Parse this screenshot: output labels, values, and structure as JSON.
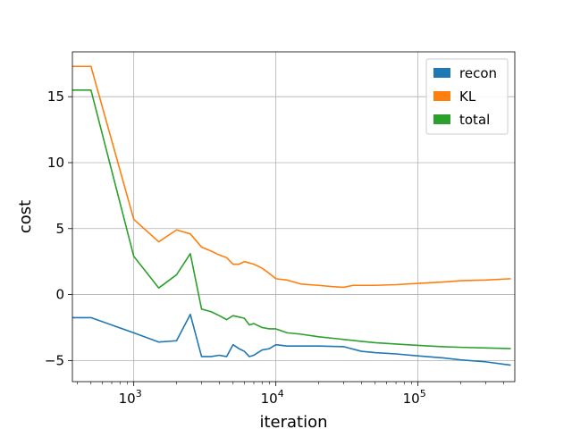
{
  "chart_data": {
    "type": "line",
    "xscale": "log",
    "xlabel": "iteration",
    "ylabel": "cost",
    "xlim": [
      370,
      480000
    ],
    "ylim": [
      -6.6,
      18.4
    ],
    "xticks": [
      {
        "value": 1000,
        "base": "10",
        "exp": "3"
      },
      {
        "value": 10000,
        "base": "10",
        "exp": "4"
      },
      {
        "value": 100000,
        "base": "10",
        "exp": "5"
      }
    ],
    "yticks": [
      -5,
      0,
      5,
      10,
      15
    ],
    "ytick_labels": [
      "−5",
      "0",
      "5",
      "10",
      "15"
    ],
    "grid": true,
    "legend_position": "top-right",
    "series": [
      {
        "name": "recon",
        "color": "#1f77b4",
        "points": [
          [
            370,
            -1.75
          ],
          [
            500,
            -1.75
          ],
          [
            1000,
            -2.9
          ],
          [
            1500,
            -3.6
          ],
          [
            2000,
            -3.5
          ],
          [
            2500,
            -1.5
          ],
          [
            3000,
            -4.7
          ],
          [
            3500,
            -4.7
          ],
          [
            4000,
            -4.6
          ],
          [
            4500,
            -4.7
          ],
          [
            5000,
            -3.8
          ],
          [
            5500,
            -4.1
          ],
          [
            6000,
            -4.3
          ],
          [
            6500,
            -4.7
          ],
          [
            7000,
            -4.6
          ],
          [
            8000,
            -4.2
          ],
          [
            9000,
            -4.1
          ],
          [
            10000,
            -3.8
          ],
          [
            12000,
            -3.9
          ],
          [
            15000,
            -3.9
          ],
          [
            20000,
            -3.9
          ],
          [
            30000,
            -3.95
          ],
          [
            40000,
            -4.3
          ],
          [
            50000,
            -4.4
          ],
          [
            70000,
            -4.5
          ],
          [
            100000,
            -4.65
          ],
          [
            150000,
            -4.8
          ],
          [
            200000,
            -4.95
          ],
          [
            300000,
            -5.1
          ],
          [
            450000,
            -5.35
          ]
        ]
      },
      {
        "name": "KL",
        "color": "#ff7f0e",
        "points": [
          [
            370,
            17.3
          ],
          [
            500,
            17.3
          ],
          [
            1000,
            5.7
          ],
          [
            1500,
            4.0
          ],
          [
            2000,
            4.9
          ],
          [
            2500,
            4.6
          ],
          [
            3000,
            3.6
          ],
          [
            3500,
            3.3
          ],
          [
            4000,
            3.0
          ],
          [
            4500,
            2.8
          ],
          [
            5000,
            2.3
          ],
          [
            5500,
            2.3
          ],
          [
            6000,
            2.5
          ],
          [
            7000,
            2.3
          ],
          [
            8000,
            2.0
          ],
          [
            9000,
            1.6
          ],
          [
            10000,
            1.2
          ],
          [
            12000,
            1.1
          ],
          [
            15000,
            0.8
          ],
          [
            20000,
            0.7
          ],
          [
            25000,
            0.6
          ],
          [
            30000,
            0.55
          ],
          [
            35000,
            0.7
          ],
          [
            50000,
            0.7
          ],
          [
            70000,
            0.75
          ],
          [
            100000,
            0.85
          ],
          [
            150000,
            0.95
          ],
          [
            200000,
            1.05
          ],
          [
            300000,
            1.1
          ],
          [
            450000,
            1.2
          ]
        ]
      },
      {
        "name": "total",
        "color": "#2ca02c",
        "points": [
          [
            370,
            15.5
          ],
          [
            500,
            15.5
          ],
          [
            1000,
            2.9
          ],
          [
            1500,
            0.5
          ],
          [
            2000,
            1.5
          ],
          [
            2500,
            3.1
          ],
          [
            3000,
            -1.1
          ],
          [
            3500,
            -1.3
          ],
          [
            4000,
            -1.6
          ],
          [
            4500,
            -1.9
          ],
          [
            5000,
            -1.6
          ],
          [
            5500,
            -1.7
          ],
          [
            6000,
            -1.8
          ],
          [
            6500,
            -2.3
          ],
          [
            7000,
            -2.2
          ],
          [
            8000,
            -2.5
          ],
          [
            9000,
            -2.6
          ],
          [
            10000,
            -2.6
          ],
          [
            12000,
            -2.9
          ],
          [
            15000,
            -3.0
          ],
          [
            20000,
            -3.2
          ],
          [
            30000,
            -3.4
          ],
          [
            40000,
            -3.55
          ],
          [
            50000,
            -3.65
          ],
          [
            70000,
            -3.75
          ],
          [
            100000,
            -3.85
          ],
          [
            150000,
            -3.95
          ],
          [
            200000,
            -4.0
          ],
          [
            300000,
            -4.05
          ],
          [
            450000,
            -4.1
          ]
        ]
      }
    ]
  }
}
